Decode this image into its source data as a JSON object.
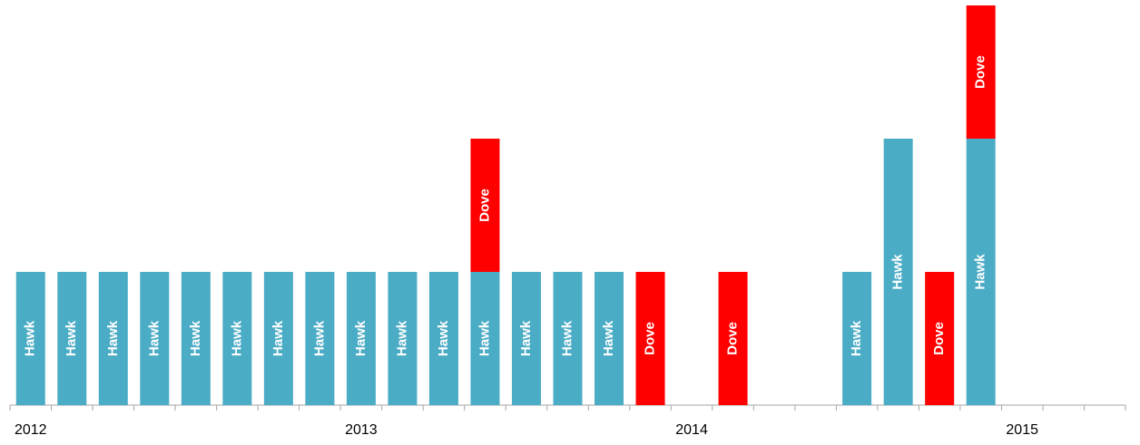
{
  "chart_data": {
    "type": "bar",
    "stacked": true,
    "categories": [
      "2012",
      null,
      null,
      null,
      null,
      null,
      null,
      null,
      "2013",
      null,
      null,
      null,
      null,
      null,
      null,
      null,
      "2014",
      null,
      null,
      null,
      null,
      null,
      null,
      null,
      "2015",
      null,
      null
    ],
    "series": [
      {
        "name": "Hawk",
        "color": "#4bacc6",
        "values": [
          1,
          1,
          1,
          1,
          1,
          1,
          1,
          1,
          1,
          1,
          1,
          1,
          1,
          1,
          1,
          0,
          0,
          0,
          0,
          0,
          1,
          2,
          0,
          2,
          0,
          0,
          0
        ]
      },
      {
        "name": "Dove",
        "color": "#ff0000",
        "values": [
          0,
          0,
          0,
          0,
          0,
          0,
          0,
          0,
          0,
          0,
          0,
          1,
          0,
          0,
          0,
          1,
          0,
          1,
          0,
          0,
          0,
          0,
          1,
          1,
          0,
          0,
          0
        ]
      }
    ],
    "ylim": [
      0,
      3
    ]
  }
}
